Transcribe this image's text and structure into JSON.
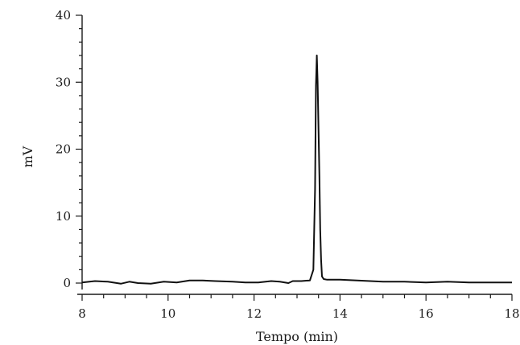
{
  "chart_data": {
    "type": "line",
    "title": "",
    "xlabel": "Tempo (min)",
    "ylabel": "mV",
    "xlim": [
      8,
      18
    ],
    "ylim": [
      0,
      40
    ],
    "x_ticks": [
      8,
      10,
      12,
      14,
      16,
      18
    ],
    "y_ticks": [
      0,
      10,
      20,
      30,
      40
    ],
    "grid": false,
    "line_color": "#111111",
    "series": [
      {
        "x": [
          8.0,
          8.3,
          8.6,
          8.9,
          9.1,
          9.3,
          9.6,
          9.9,
          10.2,
          10.5,
          10.8,
          11.1,
          11.5,
          11.8,
          12.1,
          12.4,
          12.6,
          12.8,
          12.9,
          13.1,
          13.3,
          13.38,
          13.42,
          13.44,
          13.46,
          13.48,
          13.5,
          13.52,
          13.54,
          13.56,
          13.58,
          13.62,
          13.7,
          14.0,
          14.4,
          14.7,
          15.0,
          15.5,
          16.0,
          16.5,
          17.0,
          17.5,
          18.0
        ],
        "y": [
          0.1,
          0.3,
          0.2,
          -0.1,
          0.2,
          0.0,
          -0.1,
          0.2,
          0.1,
          0.4,
          0.4,
          0.3,
          0.2,
          0.1,
          0.1,
          0.3,
          0.2,
          0.0,
          0.3,
          0.3,
          0.4,
          2.0,
          14.0,
          29.5,
          34.0,
          30.0,
          23.0,
          16.0,
          8.0,
          3.5,
          1.0,
          0.6,
          0.5,
          0.5,
          0.4,
          0.3,
          0.2,
          0.2,
          0.1,
          0.2,
          0.1,
          0.1,
          0.1
        ]
      }
    ]
  }
}
